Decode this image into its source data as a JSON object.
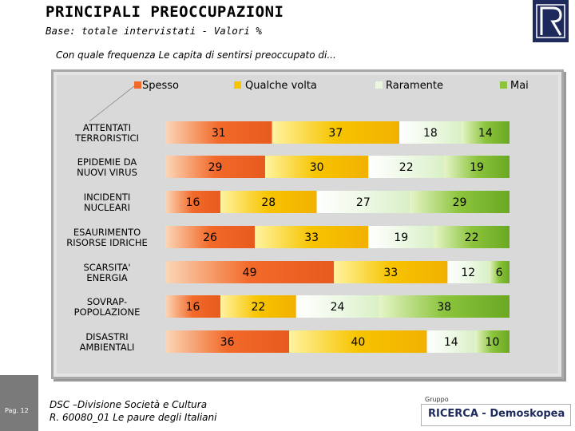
{
  "header": {
    "title": "PRINCIPALI PREOCCUPAZIONI",
    "subtitle": "Base: totale intervistati - Valori %"
  },
  "question": "Con quale frequenza Le capita di sentirsi preoccupato di...",
  "footer": {
    "page": "Pag. 12",
    "line1": "DSC –Divisione Società e Cultura",
    "line2": "R. 60080_01 Le paure degli Italiani",
    "brand_group": "Gruppo",
    "brand_name": "RICERCA - Demoskopea"
  },
  "colors": {
    "Spesso": "#f26a2a",
    "Qualche volta": "#f7c400",
    "Raramente": "#e9f7e0",
    "Mai": "#8cc43c"
  },
  "chart_data": {
    "type": "bar",
    "stacked": true,
    "orientation": "horizontal",
    "categories": [
      [
        "ATTENTATI",
        "TERRORISTICI"
      ],
      [
        "EPIDEMIE DA",
        "NUOVI VIRUS"
      ],
      [
        "INCIDENTI",
        "NUCLEARI"
      ],
      [
        "ESAURIMENTO",
        "RISORSE IDRICHE"
      ],
      [
        "SCARSITA'",
        "ENERGIA"
      ],
      [
        "SOVRAP-",
        "POPOLAZIONE"
      ],
      [
        "DISASTRI",
        "AMBIENTALI"
      ]
    ],
    "series": [
      {
        "name": "Spesso",
        "values": [
          31,
          29,
          16,
          26,
          49,
          16,
          36
        ]
      },
      {
        "name": "Qualche volta",
        "values": [
          37,
          30,
          28,
          33,
          33,
          22,
          40
        ]
      },
      {
        "name": "Raramente",
        "values": [
          18,
          22,
          27,
          19,
          12,
          24,
          14
        ]
      },
      {
        "name": "Mai",
        "values": [
          14,
          19,
          29,
          22,
          6,
          38,
          10
        ]
      }
    ],
    "legend": [
      "Spesso",
      "Qualche volta",
      "Raramente",
      "Mai"
    ],
    "legend_position": "top",
    "xlim": [
      0,
      100
    ]
  }
}
